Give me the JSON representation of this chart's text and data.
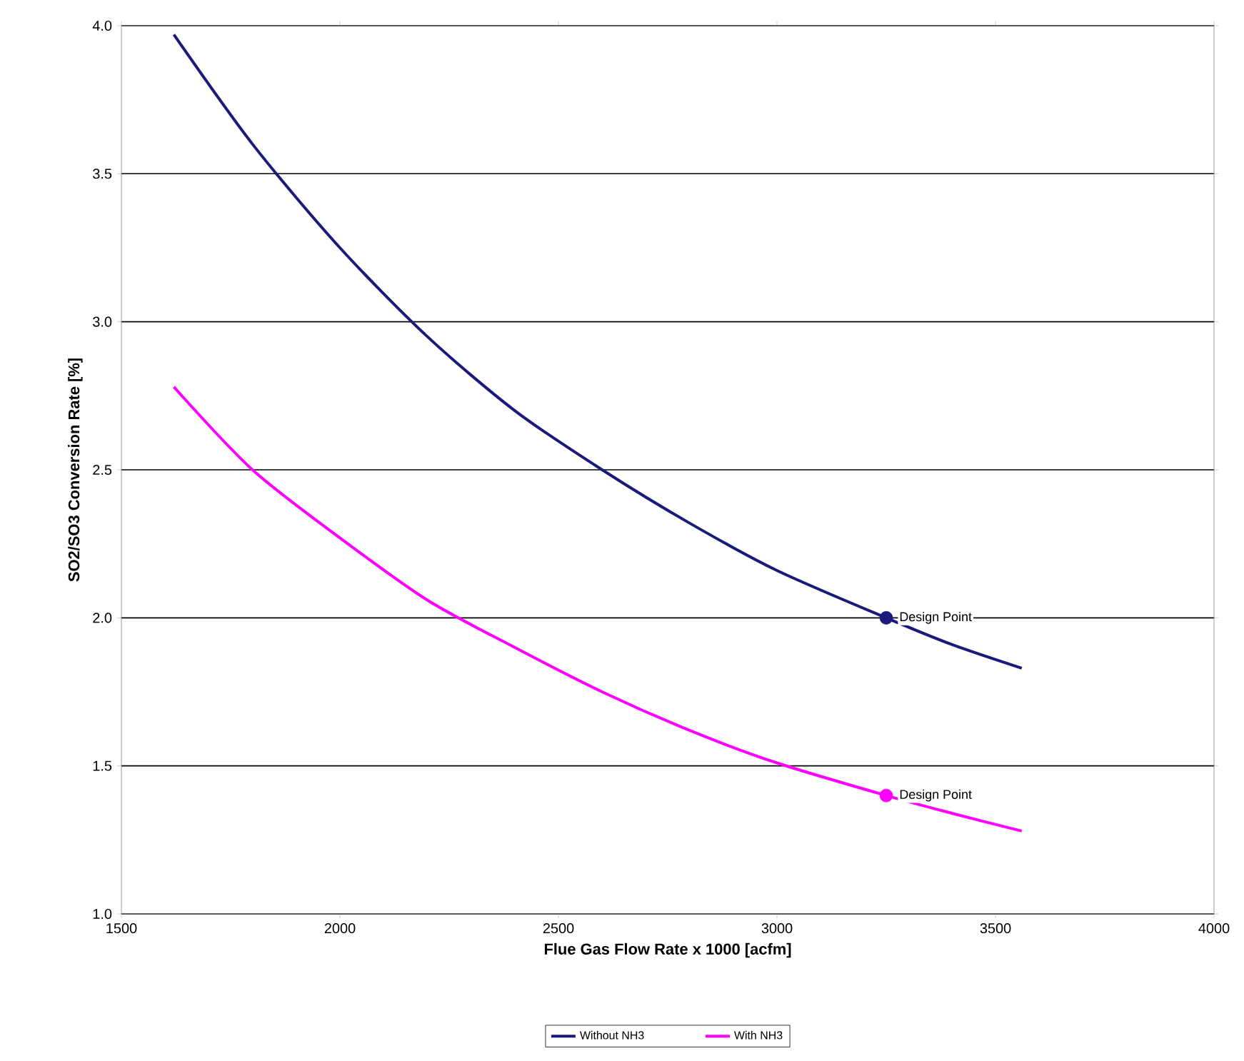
{
  "chart_data": {
    "type": "line",
    "xlabel": "Flue Gas Flow Rate x 1000 [acfm]",
    "ylabel": "SO2/SO3 Conversion Rate [%]",
    "xlim": [
      1500,
      4000
    ],
    "xticks": [
      1500,
      2000,
      2500,
      3000,
      3500,
      4000
    ],
    "ylim": [
      1.0,
      4.0
    ],
    "yticks": [
      {
        "value": 1.0,
        "label": "1.0"
      },
      {
        "value": 1.5,
        "label": "1.5"
      },
      {
        "value": 2.0,
        "label": "2.0"
      },
      {
        "value": 2.5,
        "label": "2.5"
      },
      {
        "value": 3.0,
        "label": "3.0"
      },
      {
        "value": 3.5,
        "label": "3.5"
      },
      {
        "value": 4.0,
        "label": "4.0"
      }
    ],
    "grid": "y",
    "legend": "bottom",
    "series": [
      {
        "name": "Without NH3",
        "color": "#1a1a7a",
        "x": [
          1620,
          1800,
          2000,
          2200,
          2400,
          2600,
          2800,
          3000,
          3250,
          3400,
          3560
        ],
        "values": [
          3.97,
          3.6,
          3.25,
          2.95,
          2.7,
          2.5,
          2.32,
          2.16,
          2.0,
          1.91,
          1.83
        ]
      },
      {
        "name": "With NH3",
        "color": "#ff00ff",
        "x": [
          1620,
          1800,
          2000,
          2200,
          2400,
          2600,
          2800,
          3000,
          3250,
          3400,
          3560
        ],
        "values": [
          2.78,
          2.5,
          2.27,
          2.06,
          1.9,
          1.75,
          1.62,
          1.51,
          1.4,
          1.34,
          1.28
        ]
      },
      {
        "type": "scatter",
        "marker": "circle",
        "color": "#1a1a7a",
        "x": [
          3250
        ],
        "values": [
          2.0
        ]
      },
      {
        "type": "scatter",
        "marker": "circle",
        "color": "#ff00ff",
        "x": [
          3250
        ],
        "values": [
          1.4
        ]
      }
    ],
    "annotations": [
      {
        "text": "Design Point",
        "x": 3250,
        "y": 2.0
      },
      {
        "text": "Design Point",
        "x": 3250,
        "y": 1.4
      }
    ]
  }
}
